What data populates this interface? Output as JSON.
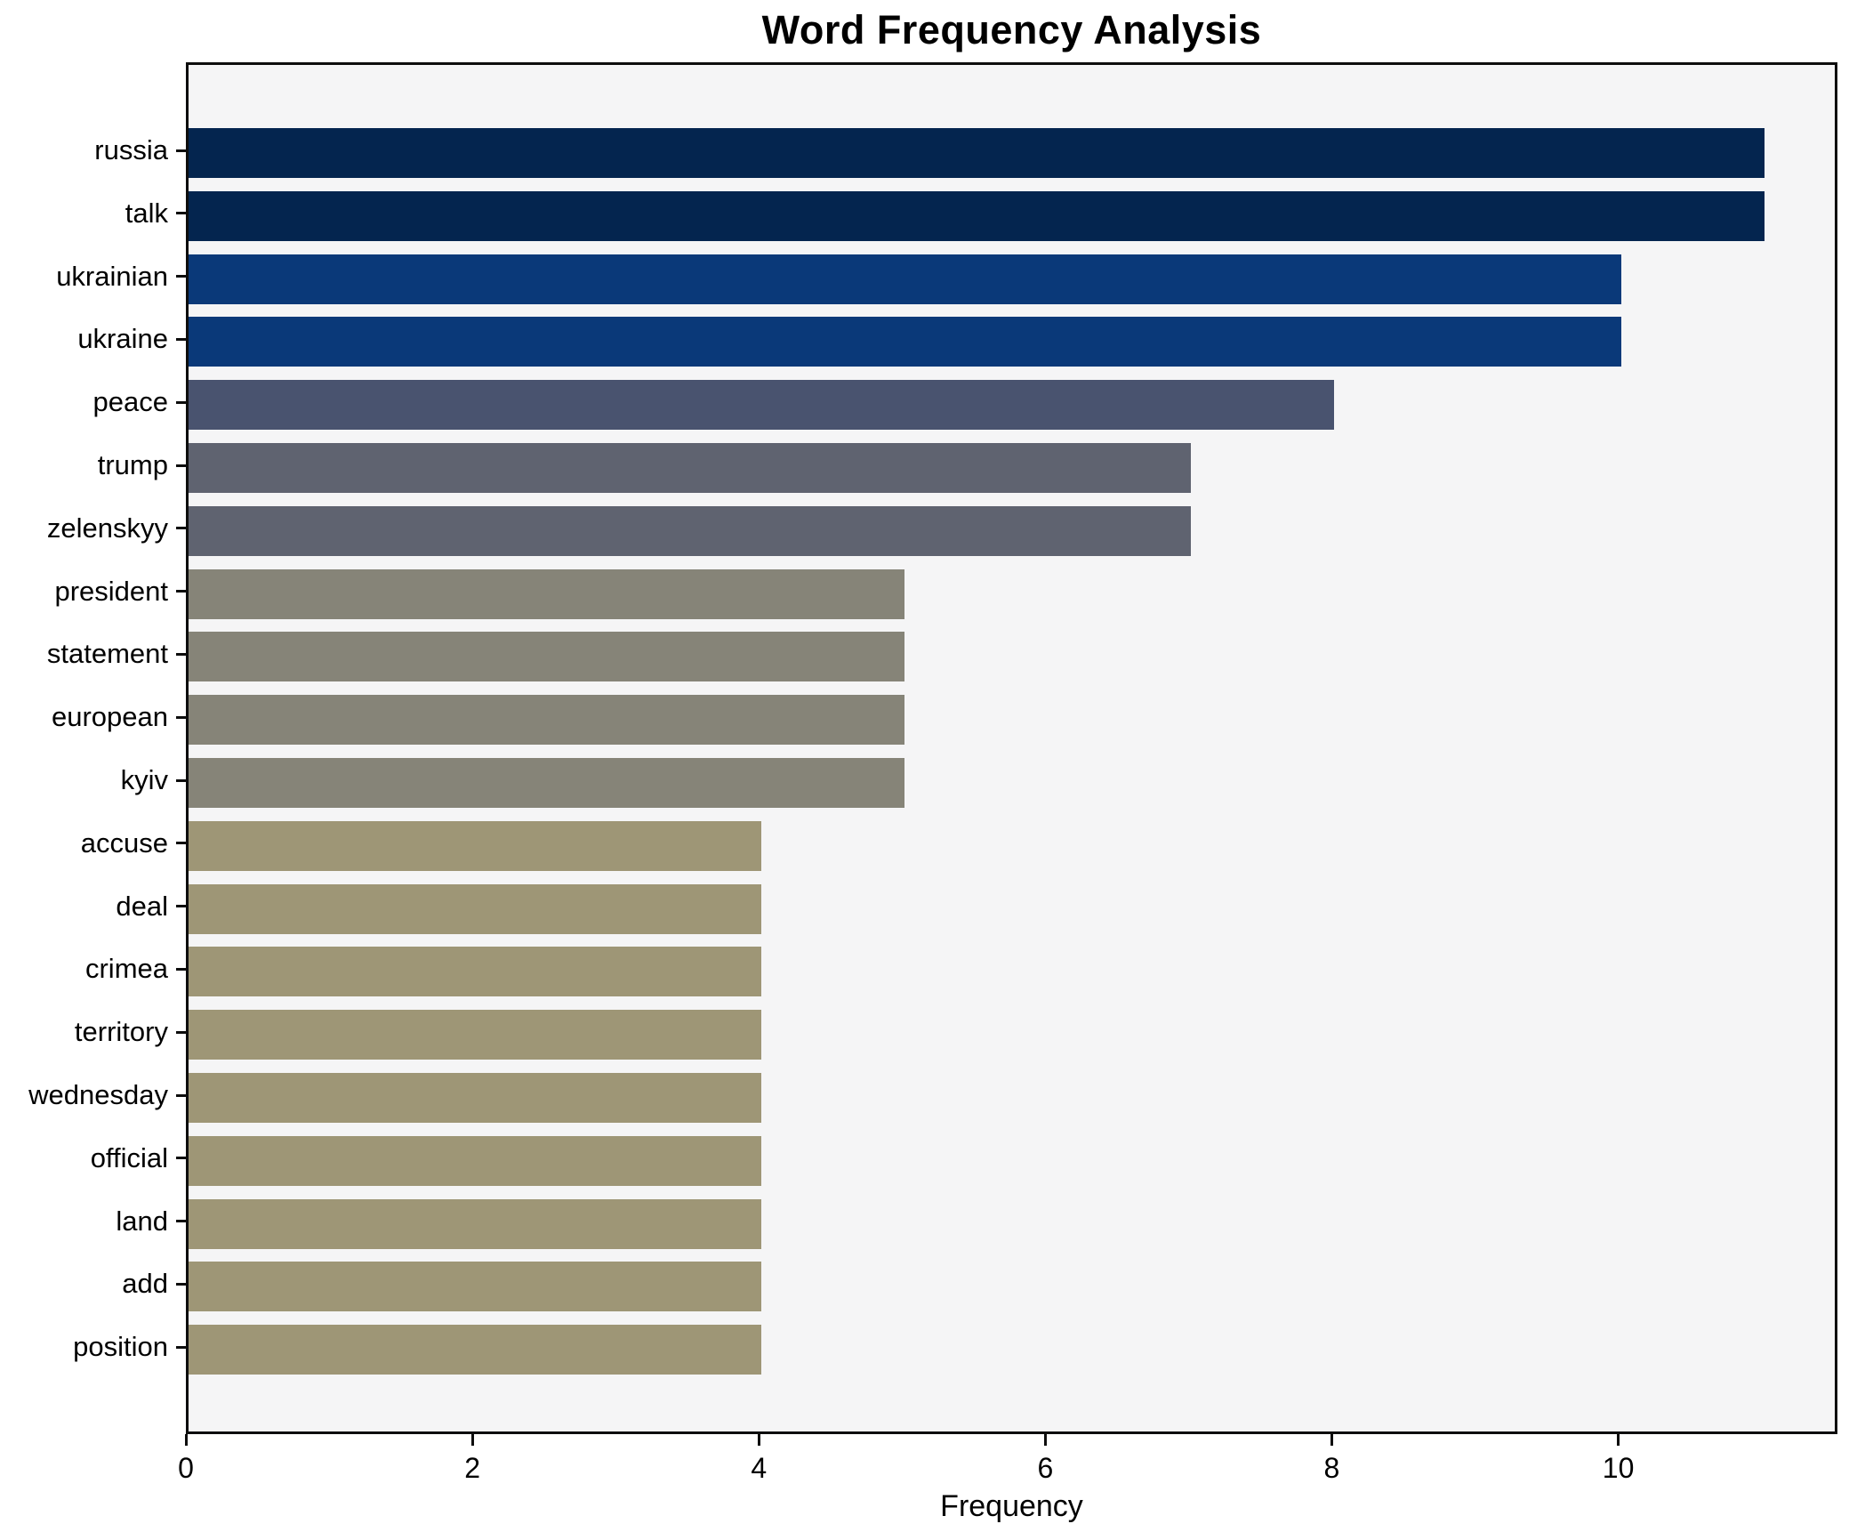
{
  "chart_data": {
    "type": "bar",
    "orientation": "horizontal",
    "title": "Word Frequency Analysis",
    "xlabel": "Frequency",
    "ylabel": "",
    "xlim": [
      0,
      11.53
    ],
    "xticks": [
      0,
      2,
      4,
      6,
      8,
      10
    ],
    "grid": false,
    "legend": false,
    "categories": [
      "russia",
      "talk",
      "ukrainian",
      "ukraine",
      "peace",
      "trump",
      "zelenskyy",
      "president",
      "statement",
      "european",
      "kyiv",
      "accuse",
      "deal",
      "crimea",
      "territory",
      "wednesday",
      "official",
      "land",
      "add",
      "position"
    ],
    "values": [
      11,
      11,
      10,
      10,
      8,
      7,
      7,
      5,
      5,
      5,
      5,
      4,
      4,
      4,
      4,
      4,
      4,
      4,
      4,
      4
    ],
    "bar_colors": [
      "#04254f",
      "#04254f",
      "#0a3979",
      "#0a3979",
      "#49536f",
      "#5f6370",
      "#5f6370",
      "#868478",
      "#868478",
      "#868478",
      "#868478",
      "#9e9676",
      "#9e9676",
      "#9e9676",
      "#9e9676",
      "#9e9676",
      "#9e9676",
      "#9e9676",
      "#9e9676",
      "#9e9676"
    ]
  },
  "colors": {
    "plot_background": "#f5f5f6",
    "figure_background": "#ffffff",
    "spine": "#0d0d0d",
    "text": "#000000"
  }
}
